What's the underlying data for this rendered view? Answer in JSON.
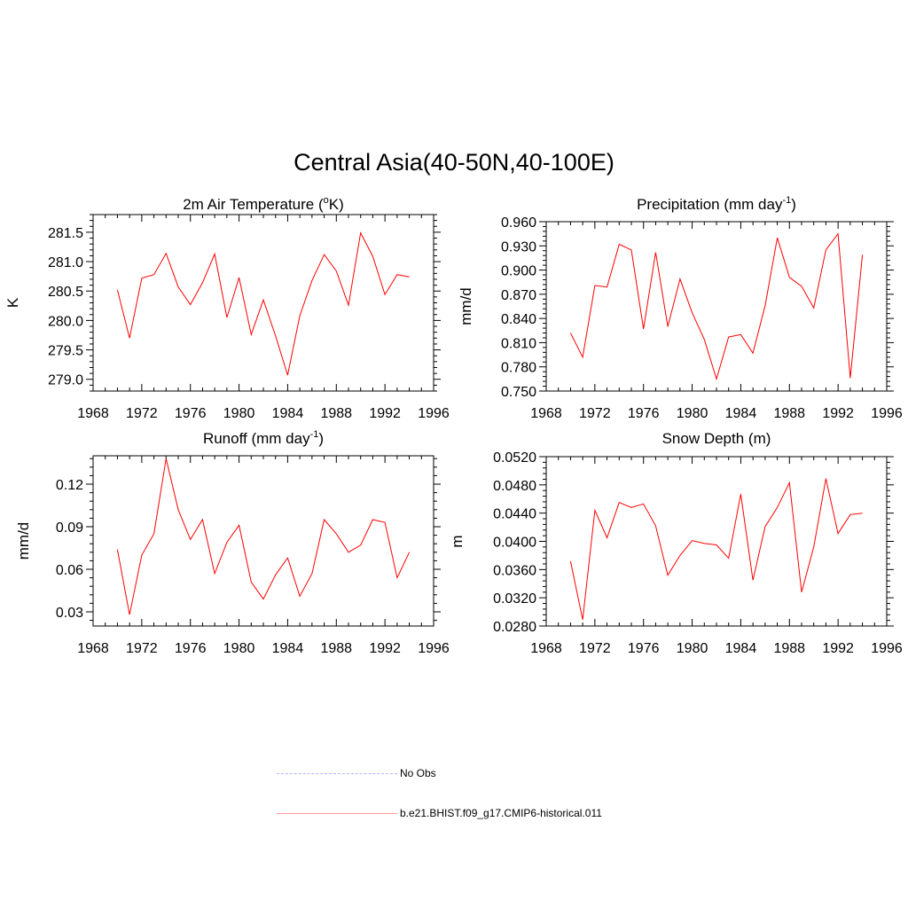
{
  "title": "Central Asia(40-50N,40-100E)",
  "legend": {
    "entries": [
      {
        "label": "No Obs",
        "color": "#b3b3ff",
        "dash": true
      },
      {
        "label": "b.e21.BHIST.f09_g17.CMIP6-historical.011",
        "color": "#ff0000",
        "dash": false
      }
    ]
  },
  "chart_data": [
    {
      "type": "line",
      "title": "2m Air Temperature (oK)",
      "title_parts": {
        "pre": "2m Air Temperature (",
        "sup": "o",
        "post": "K)"
      },
      "xlabel": "",
      "ylabel": "K",
      "xlim": [
        1968,
        1996
      ],
      "ylim": [
        278.8,
        281.8
      ],
      "xticks": [
        1968,
        1972,
        1976,
        1980,
        1984,
        1988,
        1992,
        1996
      ],
      "yticks": [
        279.0,
        279.5,
        280.0,
        280.5,
        281.0,
        281.5
      ],
      "ytick_labels": [
        "279.0",
        "279.5",
        "280.0",
        "280.5",
        "281.0",
        "281.5"
      ],
      "series": [
        {
          "color": "#ff0000",
          "x": [
            1970,
            1971,
            1972,
            1973,
            1974,
            1975,
            1976,
            1977,
            1978,
            1979,
            1980,
            1981,
            1982,
            1983,
            1984,
            1985,
            1986,
            1987,
            1988,
            1989,
            1990,
            1991,
            1992,
            1993,
            1994
          ],
          "y": [
            280.52,
            279.7,
            280.72,
            280.78,
            281.14,
            280.57,
            280.27,
            280.64,
            281.13,
            280.05,
            280.73,
            279.76,
            280.35,
            279.74,
            279.07,
            280.08,
            280.68,
            281.12,
            280.84,
            280.26,
            281.49,
            281.09,
            280.44,
            280.78,
            280.74
          ]
        }
      ]
    },
    {
      "type": "line",
      "title": "Precipitation (mm day-1)",
      "title_parts": {
        "pre": "Precipitation (mm day",
        "sup": "-1",
        "post": ")"
      },
      "xlabel": "",
      "ylabel": "mm/d",
      "xlim": [
        1968,
        1996
      ],
      "ylim": [
        0.75,
        0.96
      ],
      "xticks": [
        1968,
        1972,
        1976,
        1980,
        1984,
        1988,
        1992,
        1996
      ],
      "yticks": [
        0.75,
        0.78,
        0.81,
        0.84,
        0.87,
        0.9,
        0.93,
        0.96
      ],
      "ytick_labels": [
        "0.750",
        "0.780",
        "0.810",
        "0.840",
        "0.870",
        "0.900",
        "0.930",
        "0.960"
      ],
      "series": [
        {
          "color": "#ff0000",
          "x": [
            1970,
            1971,
            1972,
            1973,
            1974,
            1975,
            1976,
            1977,
            1978,
            1979,
            1980,
            1981,
            1982,
            1983,
            1984,
            1985,
            1986,
            1987,
            1988,
            1989,
            1990,
            1991,
            1992,
            1993,
            1994
          ],
          "y": [
            0.822,
            0.792,
            0.881,
            0.879,
            0.932,
            0.925,
            0.827,
            0.922,
            0.83,
            0.889,
            0.847,
            0.814,
            0.765,
            0.817,
            0.82,
            0.797,
            0.856,
            0.94,
            0.891,
            0.88,
            0.853,
            0.925,
            0.945,
            0.766,
            0.919
          ]
        }
      ]
    },
    {
      "type": "line",
      "title": "Runoff (mm day-1)",
      "title_parts": {
        "pre": "Runoff (mm day",
        "sup": "-1",
        "post": ")"
      },
      "xlabel": "",
      "ylabel": "mm/d",
      "xlim": [
        1968,
        1996
      ],
      "ylim": [
        0.02,
        0.14
      ],
      "xticks": [
        1968,
        1972,
        1976,
        1980,
        1984,
        1988,
        1992,
        1996
      ],
      "yticks": [
        0.03,
        0.06,
        0.09,
        0.12
      ],
      "ytick_labels": [
        "0.03",
        "0.06",
        "0.09",
        "0.12"
      ],
      "series": [
        {
          "color": "#ff0000",
          "x": [
            1970,
            1971,
            1972,
            1973,
            1974,
            1975,
            1976,
            1977,
            1978,
            1979,
            1980,
            1981,
            1982,
            1983,
            1984,
            1985,
            1986,
            1987,
            1988,
            1989,
            1990,
            1991,
            1992,
            1993,
            1994
          ],
          "y": [
            0.074,
            0.028,
            0.07,
            0.085,
            0.138,
            0.102,
            0.081,
            0.095,
            0.057,
            0.079,
            0.091,
            0.051,
            0.039,
            0.056,
            0.068,
            0.041,
            0.057,
            0.095,
            0.085,
            0.072,
            0.077,
            0.095,
            0.093,
            0.054,
            0.072
          ]
        }
      ]
    },
    {
      "type": "line",
      "title": "Snow Depth (m)",
      "title_parts": {
        "pre": "Snow Depth (m)",
        "sup": "",
        "post": ""
      },
      "xlabel": "",
      "ylabel": "m",
      "xlim": [
        1968,
        1996
      ],
      "ylim": [
        0.028,
        0.052
      ],
      "xticks": [
        1968,
        1972,
        1976,
        1980,
        1984,
        1988,
        1992,
        1996
      ],
      "yticks": [
        0.028,
        0.032,
        0.036,
        0.04,
        0.044,
        0.048,
        0.052
      ],
      "ytick_labels": [
        "0.0280",
        "0.0320",
        "0.0360",
        "0.0400",
        "0.0440",
        "0.0480",
        "0.0520"
      ],
      "series": [
        {
          "color": "#ff0000",
          "x": [
            1970,
            1971,
            1972,
            1973,
            1974,
            1975,
            1976,
            1977,
            1978,
            1979,
            1980,
            1981,
            1982,
            1983,
            1984,
            1985,
            1986,
            1987,
            1988,
            1989,
            1990,
            1991,
            1992,
            1993,
            1994
          ],
          "y": [
            0.0372,
            0.0289,
            0.0444,
            0.0405,
            0.0455,
            0.0448,
            0.0453,
            0.0422,
            0.0352,
            0.038,
            0.0401,
            0.0397,
            0.0395,
            0.0376,
            0.0467,
            0.0345,
            0.0421,
            0.0448,
            0.0483,
            0.0328,
            0.0392,
            0.0489,
            0.0411,
            0.0438,
            0.044
          ]
        }
      ]
    }
  ]
}
